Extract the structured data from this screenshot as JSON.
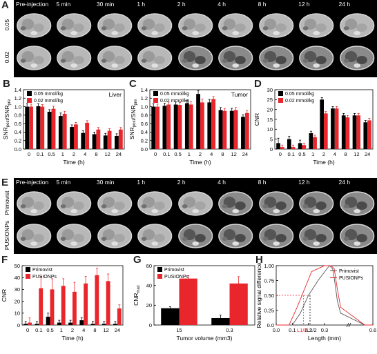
{
  "panels": {
    "A": {
      "label": "A",
      "time_headers": [
        "Pre-injection",
        "5 min",
        "30 min",
        "1 h",
        "2 h",
        "4 h",
        "8 h",
        "12 h",
        "24 h"
      ],
      "row_labels": [
        "0.05",
        "0.02"
      ]
    },
    "E": {
      "label": "E",
      "time_headers": [
        "Pre-injection",
        "5 min",
        "30 min",
        "1 h",
        "2 h",
        "4 h",
        "8 h",
        "12 h",
        "24 h"
      ],
      "row_labels": [
        "Primovist",
        "PUSIONPs"
      ]
    }
  },
  "chart_data": [
    {
      "panel": "B",
      "type": "bar",
      "title": "Liver",
      "xlabel": "Time (h)",
      "ylabel": "SNRpost/SNRpre",
      "categories": [
        "0",
        "0.1",
        "0.5",
        "1",
        "2",
        "4",
        "8",
        "12",
        "24"
      ],
      "ylim": [
        0.0,
        1.4
      ],
      "yticks": [
        "0.0",
        "0.2",
        "0.4",
        "0.6",
        "0.8",
        "1.0",
        "1.2",
        "1.4"
      ],
      "legend_position": "top-left",
      "series": [
        {
          "name": "0.05 mmol/kg",
          "color": "#000000",
          "values": [
            1.0,
            1.01,
            0.88,
            0.78,
            0.52,
            0.38,
            0.35,
            0.32,
            0.31
          ],
          "errors": [
            0.07,
            0.06,
            0.05,
            0.07,
            0.05,
            0.05,
            0.05,
            0.05,
            0.05
          ]
        },
        {
          "name": "0.02 mmol/kg",
          "color": "#e8262c",
          "values": [
            1.0,
            1.0,
            0.95,
            0.83,
            0.58,
            0.62,
            0.46,
            0.43,
            0.46
          ],
          "errors": [
            0.06,
            0.05,
            0.06,
            0.06,
            0.05,
            0.05,
            0.05,
            0.05,
            0.05
          ]
        }
      ]
    },
    {
      "panel": "C",
      "type": "bar",
      "title": "Tumor",
      "xlabel": "Time (h)",
      "ylabel": "SNRpost/SNRpre",
      "categories": [
        "0",
        "0.1",
        "0.5",
        "1",
        "2",
        "4",
        "8",
        "12",
        "24"
      ],
      "ylim": [
        0.0,
        1.4
      ],
      "yticks": [
        "0.0",
        "0.2",
        "0.4",
        "0.6",
        "0.8",
        "1.0",
        "1.2",
        "1.4"
      ],
      "legend_position": "top-left",
      "series": [
        {
          "name": "0.05 mmol/kg",
          "color": "#000000",
          "values": [
            1.0,
            1.02,
            1.05,
            1.08,
            1.3,
            1.1,
            0.92,
            0.9,
            0.76
          ],
          "errors": [
            0.07,
            0.06,
            0.06,
            0.07,
            0.08,
            0.07,
            0.06,
            0.06,
            0.05
          ]
        },
        {
          "name": "0.02 mmol/kg",
          "color": "#e8262c",
          "values": [
            1.0,
            1.05,
            1.04,
            1.05,
            1.1,
            1.18,
            0.9,
            0.92,
            0.85
          ],
          "errors": [
            0.06,
            0.06,
            0.06,
            0.07,
            0.08,
            0.06,
            0.06,
            0.06,
            0.06
          ]
        }
      ]
    },
    {
      "panel": "D",
      "type": "bar",
      "xlabel": "Time (h)",
      "ylabel": "CNR",
      "categories": [
        "0",
        "0.1",
        "0.5",
        "1",
        "2",
        "4",
        "8",
        "12",
        "24"
      ],
      "ylim": [
        0,
        30
      ],
      "yticks": [
        "0",
        "5",
        "10",
        "15",
        "20",
        "25",
        "30"
      ],
      "legend_position": "top-left",
      "series": [
        {
          "name": "0.05 mmol/kg",
          "color": "#000000",
          "values": [
            3,
            5,
            3,
            8,
            25,
            20.5,
            17,
            17,
            13.5
          ],
          "errors": [
            2.5,
            1.5,
            1.5,
            1,
            1,
            1,
            1,
            1,
            1
          ]
        },
        {
          "name": "0.02 mmol/kg",
          "color": "#e8262c",
          "values": [
            1,
            1,
            2,
            6,
            18,
            20.5,
            16,
            17,
            14.5
          ],
          "errors": [
            1,
            1,
            1,
            1,
            1,
            1,
            1,
            1,
            1
          ]
        }
      ]
    },
    {
      "panel": "F",
      "type": "bar",
      "xlabel": "Time (h)",
      "ylabel": "CNR",
      "categories": [
        "0",
        "0.1",
        "0.5",
        "1",
        "2",
        "4",
        "8",
        "12",
        "24"
      ],
      "ylim": [
        0,
        50
      ],
      "yticks": [
        "0",
        "10",
        "20",
        "30",
        "40",
        "50"
      ],
      "legend_position": "top-left",
      "series": [
        {
          "name": "Primovist",
          "color": "#000000",
          "values": [
            1,
            1,
            7,
            2,
            2,
            4,
            1,
            1,
            1
          ],
          "errors": [
            2,
            2,
            3,
            2,
            2,
            2,
            2,
            2,
            2
          ]
        },
        {
          "name": "PUSIONPs",
          "color": "#e8262c",
          "values": [
            2,
            31,
            30,
            33,
            28,
            35,
            42,
            37,
            14
          ],
          "errors": [
            4,
            10,
            9,
            6,
            8,
            6,
            6,
            6,
            3
          ]
        }
      ]
    },
    {
      "panel": "G",
      "type": "bar",
      "xlabel": "Tumor volume (mm3)",
      "ylabel": "CNRmax",
      "categories": [
        "15",
        "0.3"
      ],
      "ylim": [
        0,
        60
      ],
      "yticks": [
        "0",
        "20",
        "40",
        "60"
      ],
      "legend_position": "top-left",
      "series": [
        {
          "name": "Primovist",
          "color": "#000000",
          "values": [
            17,
            7
          ],
          "errors": [
            1.5,
            3
          ]
        },
        {
          "name": "PUSIONPs",
          "color": "#e8262c",
          "values": [
            47,
            42
          ],
          "errors": [
            3,
            7
          ]
        }
      ]
    },
    {
      "panel": "H",
      "type": "line",
      "xlabel": "Length (mm)",
      "ylabel": "Relative signal difference",
      "xlim": [
        0.0,
        0.6
      ],
      "ylim": [
        0.0,
        1.0
      ],
      "xticks": [
        "0.0",
        "0.1",
        "0.2",
        "0.3",
        "0.6"
      ],
      "yticks": [
        "0.0",
        "0.25",
        "0.50",
        "0.75",
        "1.00"
      ],
      "legend_position": "top-right",
      "annotations": [
        "L1/2",
        "L1/2"
      ],
      "series": [
        {
          "name": "Primovist",
          "color": "#555555",
          "x": [
            0.0,
            0.1,
            0.15,
            0.2,
            0.26,
            0.33,
            0.35,
            0.36,
            0.38,
            0.4,
            0.55,
            0.6
          ],
          "y": [
            0.0,
            0.0,
            0.2,
            0.5,
            0.75,
            1.0,
            0.95,
            0.8,
            0.4,
            0.2,
            0.0,
            0.0
          ]
        },
        {
          "name": "PUSIONPs",
          "color": "#e8262c",
          "x": [
            0.0,
            0.08,
            0.13,
            0.22,
            0.3,
            0.34,
            0.36,
            0.38,
            0.4,
            0.55,
            0.6
          ],
          "y": [
            0.0,
            0.0,
            0.3,
            0.9,
            1.0,
            1.0,
            0.95,
            0.6,
            0.3,
            0.0,
            0.0
          ]
        }
      ]
    }
  ]
}
